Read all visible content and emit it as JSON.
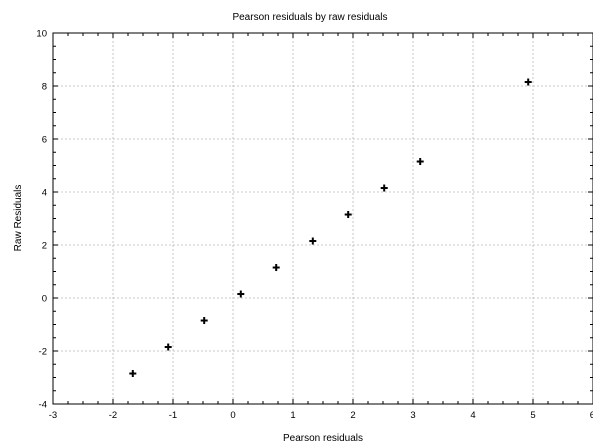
{
  "chart_data": {
    "type": "scatter",
    "title": "Pearson residuals by raw residuals",
    "xlabel": "Pearson residuals",
    "ylabel": "Raw Residuals",
    "xlim": [
      -3,
      6
    ],
    "ylim": [
      -4,
      10
    ],
    "xticks": [
      -3,
      -2,
      -1,
      0,
      1,
      2,
      3,
      4,
      5,
      6
    ],
    "yticks": [
      -4,
      -2,
      0,
      2,
      4,
      6,
      8,
      10
    ],
    "grid": true,
    "marker": "plus",
    "points": [
      {
        "x": -1.67,
        "y": -2.85
      },
      {
        "x": -1.08,
        "y": -1.85
      },
      {
        "x": -0.48,
        "y": -0.85
      },
      {
        "x": 0.13,
        "y": 0.15
      },
      {
        "x": 0.72,
        "y": 1.15
      },
      {
        "x": 1.33,
        "y": 2.15
      },
      {
        "x": 1.92,
        "y": 3.15
      },
      {
        "x": 2.52,
        "y": 4.15
      },
      {
        "x": 3.12,
        "y": 5.15
      },
      {
        "x": 4.92,
        "y": 8.15
      }
    ]
  }
}
